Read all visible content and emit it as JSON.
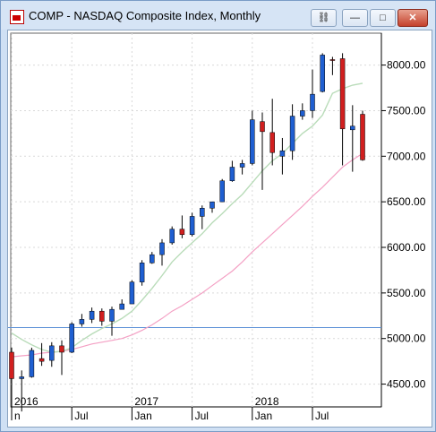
{
  "window": {
    "title": "COMP - NASDAQ Composite Index, Monthly",
    "buttons": {
      "link": "link-icon",
      "minimize": "minimize-icon",
      "maximize": "maximize-icon",
      "close": "close-icon"
    },
    "close_glyph": "✕",
    "min_glyph": "—",
    "max_glyph": "□",
    "link_glyph": "⛓"
  },
  "chart_data": {
    "type": "candlestick",
    "title": "COMP - NASDAQ Composite Index, Monthly",
    "ylim": [
      4250,
      8350
    ],
    "y_ticks": [
      4500,
      5000,
      5500,
      6000,
      6500,
      7000,
      7500,
      8000
    ],
    "y_tick_labels": [
      "4500.00",
      "5000.00",
      "5500.00",
      "6000.00",
      "6500.00",
      "7000.00",
      "7500.00",
      "8000.00"
    ],
    "x_ticks": [
      {
        "label": "n",
        "index": 0
      },
      {
        "label": "Jul",
        "index": 6
      },
      {
        "label": "Jan",
        "index": 12
      },
      {
        "label": "Jul",
        "index": 18
      },
      {
        "label": "Jan",
        "index": 24
      },
      {
        "label": "Jul",
        "index": 30
      }
    ],
    "year_labels": [
      {
        "label": "2016",
        "index": 0
      },
      {
        "label": "2017",
        "index": 12
      },
      {
        "label": "2018",
        "index": 24
      }
    ],
    "horizontal_line": 5120,
    "colors": {
      "up": "#1f5fd1",
      "down": "#d11f1f",
      "ma_short": "#b9dcb9",
      "ma_long": "#f4a0c4",
      "hline": "#5a8fd6",
      "grid": "#d9d9d9"
    },
    "candles": [
      {
        "o": 4850,
        "h": 4900,
        "l": 4250,
        "c": 4560
      },
      {
        "o": 4560,
        "h": 4650,
        "l": 4200,
        "c": 4580
      },
      {
        "o": 4580,
        "h": 4900,
        "l": 4570,
        "c": 4870
      },
      {
        "o": 4780,
        "h": 4950,
        "l": 4700,
        "c": 4750
      },
      {
        "o": 4760,
        "h": 4960,
        "l": 4690,
        "c": 4920
      },
      {
        "o": 4920,
        "h": 4980,
        "l": 4600,
        "c": 4850
      },
      {
        "o": 4850,
        "h": 5180,
        "l": 4840,
        "c": 5160
      },
      {
        "o": 5160,
        "h": 5270,
        "l": 5130,
        "c": 5210
      },
      {
        "o": 5210,
        "h": 5340,
        "l": 5170,
        "c": 5300
      },
      {
        "o": 5300,
        "h": 5330,
        "l": 5140,
        "c": 5190
      },
      {
        "o": 5190,
        "h": 5350,
        "l": 5030,
        "c": 5320
      },
      {
        "o": 5320,
        "h": 5430,
        "l": 5320,
        "c": 5380
      },
      {
        "o": 5380,
        "h": 5640,
        "l": 5380,
        "c": 5620
      },
      {
        "o": 5620,
        "h": 5860,
        "l": 5580,
        "c": 5830
      },
      {
        "o": 5830,
        "h": 5950,
        "l": 5820,
        "c": 5920
      },
      {
        "o": 5920,
        "h": 6090,
        "l": 5800,
        "c": 6050
      },
      {
        "o": 6050,
        "h": 6230,
        "l": 6030,
        "c": 6200
      },
      {
        "o": 6200,
        "h": 6350,
        "l": 6100,
        "c": 6140
      },
      {
        "o": 6140,
        "h": 6380,
        "l": 6120,
        "c": 6340
      },
      {
        "o": 6340,
        "h": 6460,
        "l": 6200,
        "c": 6430
      },
      {
        "o": 6430,
        "h": 6500,
        "l": 6380,
        "c": 6500
      },
      {
        "o": 6500,
        "h": 6750,
        "l": 6500,
        "c": 6730
      },
      {
        "o": 6730,
        "h": 6950,
        "l": 6720,
        "c": 6880
      },
      {
        "o": 6880,
        "h": 6960,
        "l": 6800,
        "c": 6920
      },
      {
        "o": 6920,
        "h": 7500,
        "l": 6900,
        "c": 7400
      },
      {
        "o": 7380,
        "h": 7480,
        "l": 6630,
        "c": 7270
      },
      {
        "o": 7260,
        "h": 7630,
        "l": 6900,
        "c": 7040
      },
      {
        "o": 7000,
        "h": 7200,
        "l": 6800,
        "c": 7060
      },
      {
        "o": 7060,
        "h": 7570,
        "l": 6960,
        "c": 7440
      },
      {
        "o": 7440,
        "h": 7580,
        "l": 7400,
        "c": 7500
      },
      {
        "o": 7500,
        "h": 7950,
        "l": 7420,
        "c": 7680
      },
      {
        "o": 7710,
        "h": 8130,
        "l": 7700,
        "c": 8110
      },
      {
        "o": 8060,
        "h": 8090,
        "l": 7890,
        "c": 8050
      },
      {
        "o": 8070,
        "h": 8130,
        "l": 6900,
        "c": 7300
      },
      {
        "o": 7290,
        "h": 7560,
        "l": 6830,
        "c": 7330
      },
      {
        "o": 7460,
        "h": 7500,
        "l": 6950,
        "c": 6960
      }
    ],
    "ma_short": [
      [
        0,
        5060
      ],
      [
        1,
        4990
      ],
      [
        2,
        4930
      ],
      [
        3,
        4880
      ],
      [
        4,
        4850
      ],
      [
        5,
        4860
      ],
      [
        6,
        4900
      ],
      [
        7,
        4980
      ],
      [
        8,
        5050
      ],
      [
        9,
        5110
      ],
      [
        10,
        5160
      ],
      [
        11,
        5220
      ],
      [
        12,
        5300
      ],
      [
        13,
        5420
      ],
      [
        14,
        5550
      ],
      [
        15,
        5690
      ],
      [
        16,
        5840
      ],
      [
        17,
        5950
      ],
      [
        18,
        6050
      ],
      [
        19,
        6150
      ],
      [
        20,
        6270
      ],
      [
        21,
        6370
      ],
      [
        22,
        6480
      ],
      [
        23,
        6580
      ],
      [
        24,
        6710
      ],
      [
        25,
        6840
      ],
      [
        26,
        6950
      ],
      [
        27,
        7030
      ],
      [
        28,
        7140
      ],
      [
        29,
        7250
      ],
      [
        30,
        7330
      ],
      [
        31,
        7450
      ],
      [
        32,
        7690
      ],
      [
        33,
        7740
      ],
      [
        34,
        7780
      ],
      [
        35,
        7800
      ]
    ],
    "ma_long": [
      [
        0,
        4800
      ],
      [
        1,
        4810
      ],
      [
        2,
        4820
      ],
      [
        3,
        4840
      ],
      [
        4,
        4850
      ],
      [
        5,
        4860
      ],
      [
        6,
        4880
      ],
      [
        7,
        4910
      ],
      [
        8,
        4940
      ],
      [
        9,
        4960
      ],
      [
        10,
        4980
      ],
      [
        11,
        5000
      ],
      [
        12,
        5040
      ],
      [
        13,
        5090
      ],
      [
        14,
        5150
      ],
      [
        15,
        5220
      ],
      [
        16,
        5300
      ],
      [
        17,
        5360
      ],
      [
        18,
        5430
      ],
      [
        19,
        5500
      ],
      [
        20,
        5580
      ],
      [
        21,
        5660
      ],
      [
        22,
        5740
      ],
      [
        23,
        5840
      ],
      [
        24,
        5950
      ],
      [
        25,
        6050
      ],
      [
        26,
        6150
      ],
      [
        27,
        6250
      ],
      [
        28,
        6350
      ],
      [
        29,
        6450
      ],
      [
        30,
        6560
      ],
      [
        31,
        6660
      ],
      [
        32,
        6770
      ],
      [
        33,
        6880
      ],
      [
        34,
        6960
      ],
      [
        35,
        7030
      ]
    ]
  }
}
